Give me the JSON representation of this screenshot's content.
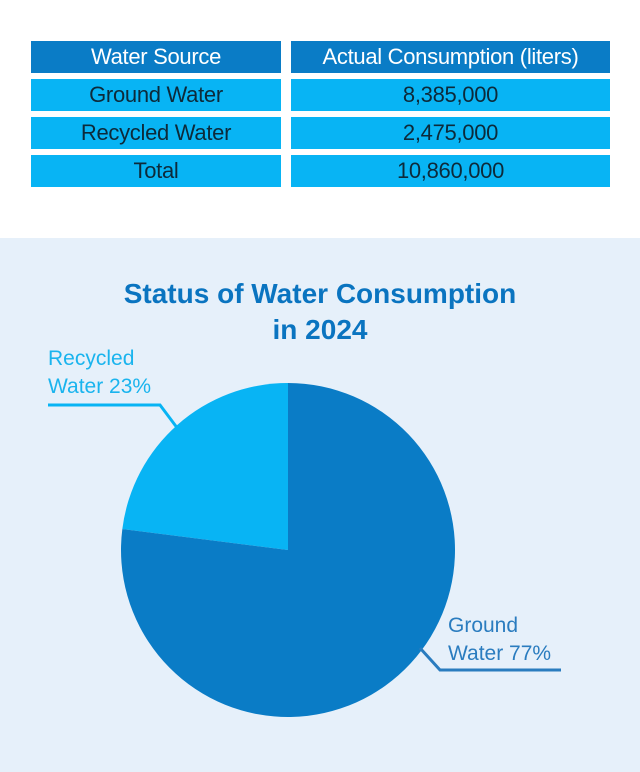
{
  "table": {
    "headers": [
      "Water Source",
      "Actual Consumption (liters)"
    ],
    "rows": [
      [
        "Ground Water",
        "8,385,000"
      ],
      [
        "Recycled Water",
        "2,475,000"
      ],
      [
        "Total",
        "10,860,000"
      ]
    ]
  },
  "colors": {
    "header_bg": "#0a7cc6",
    "row_bg": "#08b4f4",
    "ground": "#0a7cc6",
    "recycled": "#08b4f4",
    "panel_bg": "#e6f0fa",
    "title": "#0a74c0"
  },
  "chart_data": {
    "type": "pie",
    "title": "Status of Water Consumption in 2024",
    "title_lines": [
      "Status of Water Consumption",
      "in 2024"
    ],
    "slices": [
      {
        "name": "Recycled Water",
        "value": 23,
        "label_lines": [
          "Recycled",
          "Water 23%"
        ],
        "color": "#08b4f4"
      },
      {
        "name": "Ground Water",
        "value": 77,
        "label_lines": [
          "Ground",
          "Water 77%"
        ],
        "color": "#0a7cc6"
      }
    ],
    "units": "%",
    "start_angle": "12 o'clock, counterclockwise for first slice"
  }
}
